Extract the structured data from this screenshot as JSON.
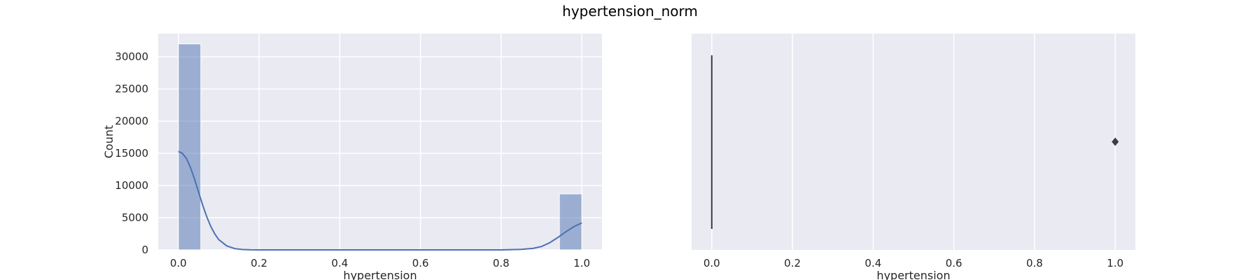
{
  "figure": {
    "title": "hypertension_norm"
  },
  "chart_data": [
    {
      "type": "bar",
      "subtype": "histogram_with_kde",
      "xlabel": "hypertension",
      "ylabel": "Count",
      "xlim": [
        -0.05,
        1.05
      ],
      "ylim": [
        0,
        33600
      ],
      "xticks": [
        "0.0",
        "0.2",
        "0.4",
        "0.6",
        "0.8",
        "1.0"
      ],
      "yticks": [
        "0",
        "5000",
        "10000",
        "15000",
        "20000",
        "25000",
        "30000"
      ],
      "grid": true,
      "bars": [
        {
          "x0": 0.0,
          "x1": 0.0556,
          "value": 32000
        },
        {
          "x0": 0.9444,
          "x1": 1.0,
          "value": 8700
        }
      ],
      "kde": {
        "x": [
          0.0,
          0.01,
          0.02,
          0.03,
          0.04,
          0.05,
          0.06,
          0.07,
          0.08,
          0.09,
          0.1,
          0.12,
          0.14,
          0.16,
          0.18,
          0.2,
          0.3,
          0.5,
          0.7,
          0.8,
          0.85,
          0.88,
          0.9,
          0.92,
          0.94,
          0.96,
          0.98,
          1.0
        ],
        "y": [
          15300,
          15000,
          14200,
          12800,
          11000,
          9000,
          7000,
          5200,
          3700,
          2500,
          1600,
          620,
          200,
          50,
          10,
          0,
          0,
          0,
          0,
          0,
          80,
          250,
          520,
          1100,
          1900,
          2800,
          3600,
          4200
        ]
      },
      "bar_color": "#4c72b0",
      "line_color": "#4c72b0"
    },
    {
      "type": "box",
      "xlabel": "hypertension",
      "xlim": [
        -0.05,
        1.05
      ],
      "xticks": [
        "0.0",
        "0.2",
        "0.4",
        "0.6",
        "0.8",
        "1.0"
      ],
      "grid": true,
      "box": {
        "q1": 0.0,
        "median": 0.0,
        "q3": 0.0,
        "whisker_low": 0.0,
        "whisker_high": 0.0
      },
      "outliers": [
        1.0
      ]
    }
  ],
  "style": {
    "plot_bg": "#eaeaf2",
    "grid": "#ffffff"
  }
}
